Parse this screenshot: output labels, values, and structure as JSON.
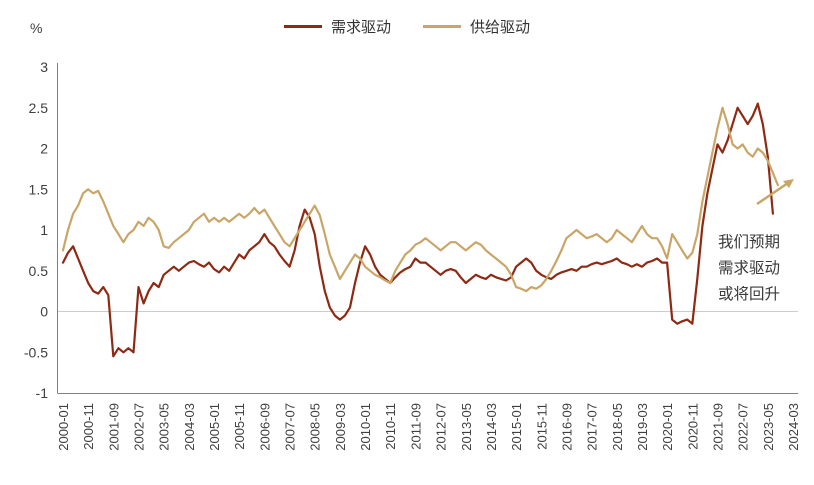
{
  "chart_data": {
    "type": "line",
    "title": "",
    "ylabel": "%",
    "ylim": [
      -1,
      3
    ],
    "ytick_step": 0.5,
    "grid": "zero-line-only",
    "legend_position": "top-center",
    "x_start": "2000-01",
    "x_axis_end": "2024-03",
    "months_per_point": 2,
    "x_tick_month_interval": 10,
    "x_ticklabels": [
      "2000-01",
      "2000-11",
      "2001-09",
      "2002-07",
      "2003-05",
      "2004-03",
      "2005-01",
      "2005-11",
      "2006-09",
      "2007-07",
      "2008-05",
      "2009-03",
      "2010-01",
      "2010-11",
      "2011-09",
      "2012-07",
      "2013-05",
      "2014-03",
      "2015-01",
      "2015-11",
      "2016-09",
      "2017-07",
      "2018-05",
      "2019-03",
      "2020-01",
      "2020-11",
      "2021-09",
      "2022-07",
      "2023-05",
      "2024-03"
    ],
    "series": [
      {
        "name": "需求驱动",
        "color": "#8E2A13",
        "values": [
          0.6,
          0.72,
          0.8,
          0.65,
          0.5,
          0.35,
          0.25,
          0.22,
          0.3,
          0.2,
          -0.55,
          -0.45,
          -0.5,
          -0.45,
          -0.5,
          0.3,
          0.1,
          0.25,
          0.35,
          0.3,
          0.45,
          0.5,
          0.55,
          0.5,
          0.55,
          0.6,
          0.62,
          0.58,
          0.55,
          0.6,
          0.52,
          0.48,
          0.55,
          0.5,
          0.6,
          0.7,
          0.65,
          0.75,
          0.8,
          0.85,
          0.95,
          0.85,
          0.8,
          0.7,
          0.62,
          0.55,
          0.75,
          1.05,
          1.25,
          1.15,
          0.95,
          0.55,
          0.25,
          0.05,
          -0.05,
          -0.1,
          -0.05,
          0.05,
          0.35,
          0.6,
          0.8,
          0.7,
          0.55,
          0.45,
          0.4,
          0.35,
          0.42,
          0.48,
          0.52,
          0.55,
          0.65,
          0.6,
          0.6,
          0.55,
          0.5,
          0.45,
          0.5,
          0.52,
          0.5,
          0.42,
          0.35,
          0.4,
          0.45,
          0.42,
          0.4,
          0.45,
          0.42,
          0.4,
          0.38,
          0.42,
          0.55,
          0.6,
          0.65,
          0.6,
          0.5,
          0.45,
          0.42,
          0.4,
          0.45,
          0.48,
          0.5,
          0.52,
          0.5,
          0.55,
          0.55,
          0.58,
          0.6,
          0.58,
          0.6,
          0.62,
          0.65,
          0.6,
          0.58,
          0.55,
          0.58,
          0.55,
          0.6,
          0.62,
          0.65,
          0.6,
          0.6,
          -0.1,
          -0.15,
          -0.12,
          -0.1,
          -0.15,
          0.4,
          1.05,
          1.45,
          1.75,
          2.05,
          1.95,
          2.1,
          2.3,
          2.5,
          2.4,
          2.3,
          2.4,
          2.55,
          2.3,
          1.9,
          1.2
        ]
      },
      {
        "name": "供给驱动",
        "color": "#C9A668",
        "values": [
          0.75,
          1.0,
          1.2,
          1.3,
          1.45,
          1.5,
          1.45,
          1.48,
          1.35,
          1.2,
          1.05,
          0.95,
          0.85,
          0.95,
          1.0,
          1.1,
          1.05,
          1.15,
          1.1,
          1.0,
          0.8,
          0.78,
          0.85,
          0.9,
          0.95,
          1.0,
          1.1,
          1.15,
          1.2,
          1.1,
          1.15,
          1.1,
          1.15,
          1.1,
          1.15,
          1.2,
          1.15,
          1.2,
          1.27,
          1.2,
          1.25,
          1.15,
          1.05,
          0.95,
          0.85,
          0.8,
          0.9,
          1.0,
          1.1,
          1.2,
          1.3,
          1.18,
          0.95,
          0.7,
          0.55,
          0.4,
          0.5,
          0.6,
          0.7,
          0.65,
          0.55,
          0.5,
          0.45,
          0.42,
          0.38,
          0.35,
          0.5,
          0.6,
          0.7,
          0.75,
          0.82,
          0.85,
          0.9,
          0.85,
          0.8,
          0.75,
          0.8,
          0.85,
          0.85,
          0.8,
          0.75,
          0.8,
          0.85,
          0.82,
          0.75,
          0.7,
          0.65,
          0.6,
          0.55,
          0.45,
          0.3,
          0.28,
          0.25,
          0.3,
          0.28,
          0.32,
          0.4,
          0.5,
          0.62,
          0.75,
          0.9,
          0.95,
          1.0,
          0.95,
          0.9,
          0.92,
          0.95,
          0.9,
          0.85,
          0.9,
          1.0,
          0.95,
          0.9,
          0.85,
          0.95,
          1.05,
          0.95,
          0.9,
          0.9,
          0.8,
          0.65,
          0.95,
          0.85,
          0.75,
          0.65,
          0.72,
          0.95,
          1.35,
          1.65,
          1.95,
          2.25,
          2.5,
          2.3,
          2.05,
          2.0,
          2.05,
          1.95,
          1.9,
          2.0,
          1.95,
          1.85,
          1.7,
          1.55
        ]
      }
    ],
    "annotation": {
      "lines": [
        "我们预期",
        "需求驱动",
        "或将回升"
      ],
      "arrow_color": "#C9A668"
    }
  }
}
